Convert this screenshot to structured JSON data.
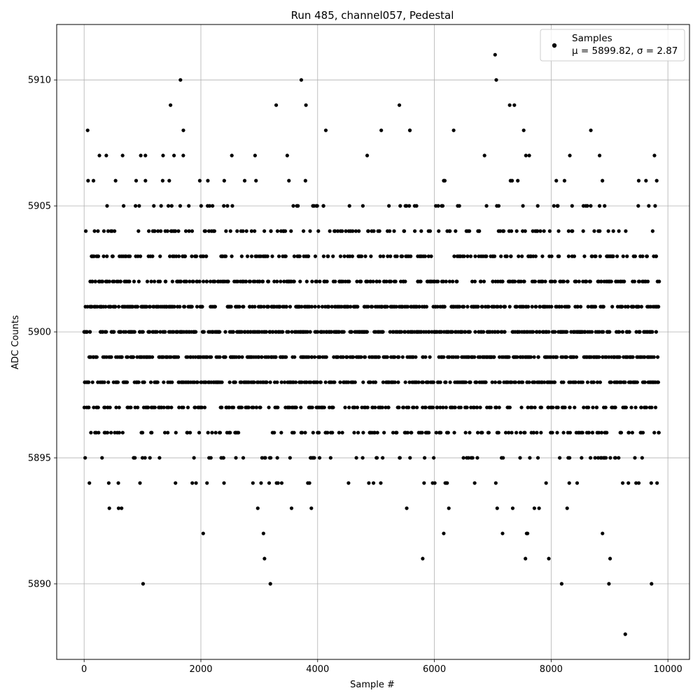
{
  "chart_data": {
    "type": "scatter",
    "title": "Run 485, channel057, Pedestal",
    "xlabel": "Sample #",
    "ylabel": "ADC Counts",
    "xlim": [
      -470,
      10370
    ],
    "ylim": [
      5887.0,
      5912.2
    ],
    "xticks": [
      0,
      2000,
      4000,
      6000,
      8000,
      10000
    ],
    "xtick_labels": [
      "0",
      "2000",
      "4000",
      "6000",
      "8000",
      "10000"
    ],
    "yticks": [
      5890,
      5895,
      5900,
      5905,
      5910
    ],
    "ytick_labels": [
      "5890",
      "5895",
      "5900",
      "5905",
      "5910"
    ],
    "grid": true,
    "legend_position": "top-right",
    "marker_color": "#000000",
    "series": [
      {
        "name": "Samples",
        "stats_label": "μ = 5899.82, σ = 2.87",
        "x": [
          0,
          100,
          200,
          300,
          400,
          500,
          600,
          700,
          800,
          900,
          1000,
          1100,
          1200,
          1300,
          1400,
          1500,
          1600,
          1700,
          1800,
          1900,
          2000,
          2100,
          2200,
          2300,
          2400,
          2500,
          2600,
          2700,
          2800,
          2900,
          3000,
          3100,
          3200,
          3300,
          3400,
          3500,
          3600,
          3700,
          3800,
          3900,
          4000,
          4100,
          4200,
          4300,
          4400,
          4500,
          4600,
          4700,
          4800,
          4900,
          5000,
          5100,
          5200,
          5300,
          5400,
          5500,
          5600,
          5700,
          5800,
          5900,
          6000,
          6100,
          6200,
          6300,
          6400,
          6500,
          6600,
          6700,
          6800,
          6900,
          7000,
          7100,
          7200,
          7300,
          7400,
          7500,
          7600,
          7700,
          7800,
          7900,
          8000,
          8100,
          8200,
          8300,
          8400,
          8500,
          8600,
          8700,
          8800,
          8900,
          9000,
          9100,
          9200,
          9300,
          9400,
          9500,
          9600,
          9700,
          9800,
          60,
          160,
          380,
          1010,
          1050,
          1480,
          1650,
          1700,
          2040,
          2530,
          3090,
          3190,
          3290,
          3720,
          3800,
          4140,
          5090,
          5400,
          5580,
          5800,
          6160,
          6330,
          7040,
          7060,
          7290,
          7370,
          7530,
          7560,
          7580,
          7960,
          8180,
          8320,
          8680,
          8830,
          8880,
          8990,
          9010,
          9270,
          9500,
          9720
        ],
        "y": [
          5900,
          5901,
          5899,
          5898,
          5902,
          5900,
          5897,
          5903,
          5899,
          5901,
          5896,
          5900,
          5904,
          5902,
          5899,
          5905,
          5901,
          5897,
          5900,
          5903,
          5898,
          5902,
          5905,
          5900,
          5899,
          5901,
          5896,
          5903,
          5900,
          5898,
          5902,
          5899,
          5904,
          5901,
          5900,
          5897,
          5903,
          5902,
          5899,
          5901,
          5900,
          5905,
          5898,
          5902,
          5899,
          5901,
          5904,
          5900,
          5897,
          5902,
          5899,
          5901,
          5903,
          5898,
          5900,
          5902,
          5896,
          5901,
          5899,
          5904,
          5900,
          5897,
          5902,
          5899,
          5905,
          5901,
          5898,
          5900,
          5903,
          5899,
          5902,
          5904,
          5900,
          5898,
          5901,
          5903,
          5899,
          5896,
          5900,
          5902,
          5897,
          5901,
          5899,
          5904,
          5898,
          5900,
          5902,
          5901,
          5899,
          5895,
          5900,
          5897,
          5901,
          5903,
          5899,
          5902,
          5898,
          5900,
          5901,
          5908,
          5906,
          5907,
          5890,
          5907,
          5909,
          5910,
          5908,
          5892,
          5907,
          5891,
          5890,
          5909,
          5910,
          5909,
          5908,
          5908,
          5909,
          5908,
          5891,
          5892,
          5908,
          5911,
          5910,
          5909,
          5909,
          5908,
          5891,
          5892,
          5891,
          5890,
          5907,
          5908,
          5907,
          5892,
          5890,
          5891,
          5888,
          5906,
          5890
        ]
      }
    ]
  }
}
